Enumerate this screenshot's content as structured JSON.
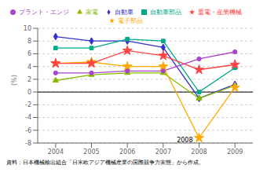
{
  "chart_data": {
    "type": "line",
    "x": [
      2004,
      2005,
      2006,
      2007,
      2008,
      2009
    ],
    "xlim": [
      2003.5,
      2009.5
    ],
    "xticks": [
      2004,
      2005,
      2006,
      2007,
      2008,
      2009
    ],
    "ylim": [
      -8,
      10
    ],
    "yticks": [
      -8,
      -6,
      -4,
      -2,
      0,
      2,
      4,
      6,
      8,
      10
    ],
    "ylabel": "(%)",
    "grid": true,
    "legend": "top",
    "series": [
      {
        "name": "自動車",
        "color": "#3333cc",
        "marker": "diamond",
        "values": [
          8.7,
          8.0,
          8.0,
          7.0,
          -1.0,
          1.2
        ]
      },
      {
        "name": "自動車部品",
        "color": "#00aa88",
        "marker": "square",
        "values": [
          6.9,
          6.9,
          8.3,
          8.0,
          0.0,
          3.8
        ]
      },
      {
        "name": "家電",
        "color": "#88bb00",
        "marker": "triangle",
        "values": [
          1.8,
          2.7,
          3.0,
          3.0,
          -1.0,
          1.0
        ]
      },
      {
        "name": "電子部品",
        "color": "#ffaa00",
        "marker": "star",
        "values": [
          4.5,
          4.7,
          4.0,
          4.0,
          -7.2,
          0.7
        ]
      },
      {
        "name": "重電・産業機械",
        "color": "#ff4444",
        "marker": "star",
        "values": [
          4.5,
          4.5,
          6.5,
          5.7,
          3.5,
          4.3
        ]
      },
      {
        "name": "プラント・エンジ",
        "color": "#aa44cc",
        "marker": "circle",
        "values": [
          3.0,
          3.0,
          3.3,
          3.3,
          5.2,
          6.3
        ]
      }
    ],
    "annotations": [
      {
        "text": "2008",
        "x": 2008,
        "y": -7.5
      },
      {
        "text": "資料：日本機械輸出組合「日米欧アジア機械産業の国際競争力実態」から作成。"
      }
    ]
  }
}
